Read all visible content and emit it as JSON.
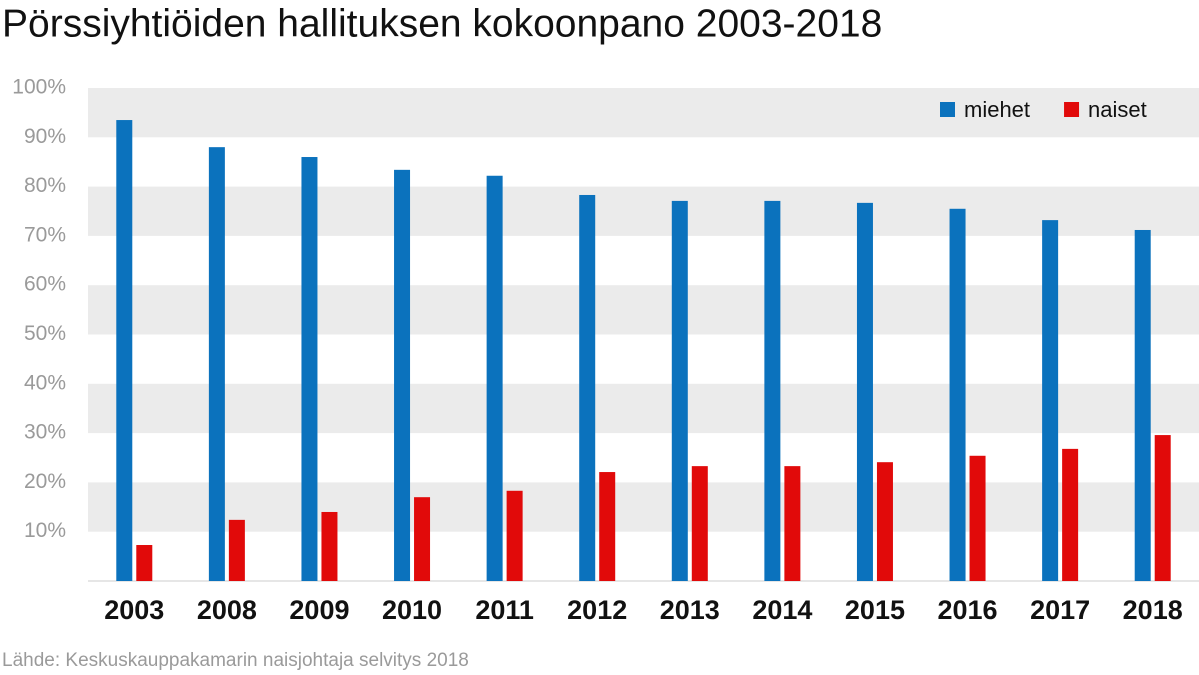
{
  "chart_data": {
    "type": "bar",
    "title": "Pörssiyhtiöiden hallituksen kokoonpano 2003-2018",
    "source": "Lähde: Keskuskauppakamarin naisjohtaja selvitys 2018",
    "categories": [
      "2003",
      "2008",
      "2009",
      "2010",
      "2011",
      "2012",
      "2013",
      "2014",
      "2015",
      "2016",
      "2017",
      "2018"
    ],
    "series": [
      {
        "name": "miehet",
        "color": "#0b72bd",
        "values": [
          93.5,
          88.0,
          86.0,
          83.4,
          82.2,
          78.3,
          77.1,
          77.1,
          76.7,
          75.5,
          73.2,
          71.2
        ]
      },
      {
        "name": "naiset",
        "color": "#e10a0a",
        "values": [
          7.3,
          12.4,
          14.0,
          17.0,
          18.3,
          22.1,
          23.3,
          23.3,
          24.1,
          25.4,
          26.8,
          29.6
        ]
      }
    ],
    "ylim": [
      0,
      100
    ],
    "yticks": [
      {
        "value": 10,
        "label": "10%"
      },
      {
        "value": 20,
        "label": "20%"
      },
      {
        "value": 30,
        "label": "30%"
      },
      {
        "value": 40,
        "label": "40%"
      },
      {
        "value": 50,
        "label": "50%"
      },
      {
        "value": 60,
        "label": "60%"
      },
      {
        "value": 70,
        "label": "70%"
      },
      {
        "value": 80,
        "label": "80%"
      },
      {
        "value": 90,
        "label": "90%"
      },
      {
        "value": 100,
        "label": "100%"
      }
    ],
    "legend": "top-right"
  }
}
